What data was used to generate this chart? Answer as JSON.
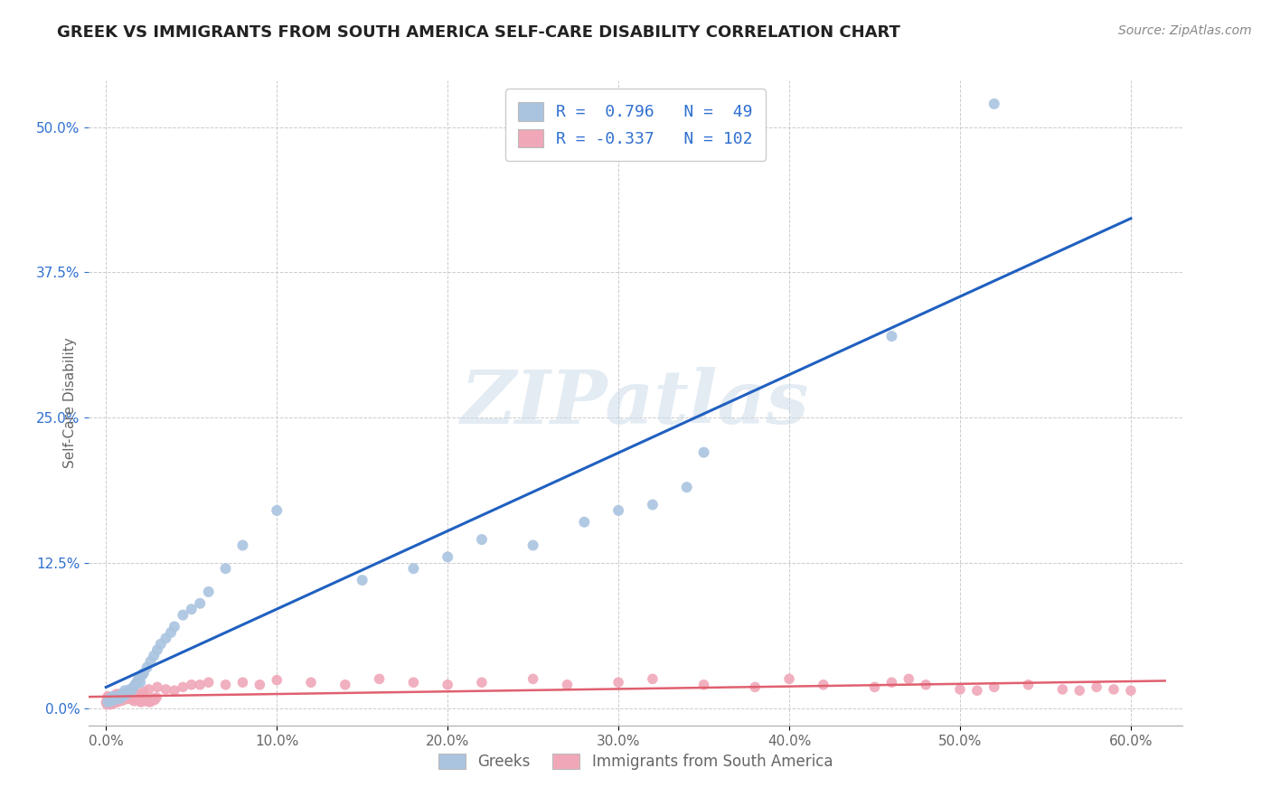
{
  "title": "GREEK VS IMMIGRANTS FROM SOUTH AMERICA SELF-CARE DISABILITY CORRELATION CHART",
  "source": "Source: ZipAtlas.com",
  "watermark": "ZIPatlas",
  "color_greek": "#aac4e0",
  "color_pink": "#f0a8b8",
  "color_trend_blue": "#2060c0",
  "color_trend_pink": "#e06070",
  "color_title": "#222222",
  "color_legend_blue_text": "#3070d0",
  "color_yaxis": "#3070d0",
  "greek_x": [
    0.1,
    0.2,
    0.3,
    0.4,
    0.5,
    0.6,
    0.7,
    0.8,
    0.9,
    1.0,
    1.1,
    1.2,
    1.3,
    1.4,
    1.5,
    1.6,
    1.7,
    1.8,
    1.9,
    2.0,
    2.1,
    2.2,
    2.4,
    2.6,
    2.8,
    3.0,
    3.2,
    3.5,
    3.8,
    4.0,
    4.5,
    5.0,
    5.5,
    6.0,
    7.0,
    8.0,
    10.0,
    25.0,
    28.0,
    30.0,
    32.0,
    34.0,
    35.0,
    46.0,
    52.0,
    15.0,
    18.0,
    20.0,
    22.0
  ],
  "greek_y": [
    0.5,
    0.8,
    0.6,
    1.0,
    0.7,
    0.9,
    1.0,
    0.8,
    1.2,
    1.0,
    1.5,
    1.2,
    1.4,
    1.6,
    1.5,
    1.8,
    2.0,
    2.2,
    2.5,
    2.2,
    2.8,
    3.0,
    3.5,
    4.0,
    4.5,
    5.0,
    5.5,
    6.0,
    6.5,
    7.0,
    8.0,
    8.5,
    9.0,
    10.0,
    12.0,
    14.0,
    17.0,
    14.0,
    16.0,
    17.0,
    17.5,
    19.0,
    22.0,
    32.0,
    52.0,
    11.0,
    12.0,
    13.0,
    14.5
  ],
  "pink_x": [
    0.0,
    0.1,
    0.1,
    0.2,
    0.2,
    0.3,
    0.3,
    0.3,
    0.4,
    0.4,
    0.5,
    0.5,
    0.5,
    0.6,
    0.6,
    0.7,
    0.7,
    0.8,
    0.8,
    0.9,
    1.0,
    1.0,
    1.1,
    1.2,
    1.3,
    1.4,
    1.5,
    1.5,
    1.6,
    1.7,
    1.8,
    2.0,
    2.2,
    2.5,
    3.0,
    3.5,
    4.0,
    4.5,
    5.0,
    5.5,
    6.0,
    7.0,
    8.0,
    9.0,
    10.0,
    12.0,
    14.0,
    16.0,
    18.0,
    20.0,
    22.0,
    25.0,
    27.0,
    30.0,
    32.0,
    35.0,
    38.0,
    40.0,
    42.0,
    45.0,
    46.0,
    47.0,
    48.0,
    50.0,
    51.0,
    52.0,
    54.0,
    56.0,
    57.0,
    58.0,
    59.0,
    60.0,
    0.05,
    0.15,
    0.25,
    0.35,
    0.45,
    0.55,
    0.65,
    0.75,
    0.85,
    0.95,
    1.05,
    1.15,
    1.25,
    1.35,
    1.45,
    1.55,
    1.65,
    1.75,
    1.85,
    1.95,
    2.05,
    2.15,
    2.25,
    2.35,
    2.45,
    2.55,
    2.65,
    2.75,
    2.85,
    2.95
  ],
  "pink_y": [
    0.5,
    0.8,
    1.0,
    0.5,
    0.9,
    0.5,
    0.7,
    0.8,
    0.6,
    0.9,
    0.5,
    0.7,
    1.0,
    0.8,
    1.2,
    0.7,
    1.0,
    0.8,
    1.2,
    1.0,
    0.7,
    1.0,
    0.9,
    0.8,
    1.0,
    0.9,
    1.0,
    1.5,
    1.2,
    1.0,
    1.2,
    1.2,
    1.4,
    1.6,
    1.8,
    1.6,
    1.5,
    1.8,
    2.0,
    2.0,
    2.2,
    2.0,
    2.2,
    2.0,
    2.4,
    2.2,
    2.0,
    2.5,
    2.2,
    2.0,
    2.2,
    2.5,
    2.0,
    2.2,
    2.5,
    2.0,
    1.8,
    2.5,
    2.0,
    1.8,
    2.2,
    2.5,
    2.0,
    1.6,
    1.5,
    1.8,
    2.0,
    1.6,
    1.5,
    1.8,
    1.6,
    1.5,
    0.3,
    0.4,
    0.3,
    0.5,
    0.4,
    0.6,
    0.5,
    0.7,
    0.6,
    0.8,
    0.7,
    0.9,
    0.8,
    1.0,
    0.8,
    0.7,
    0.6,
    0.7,
    0.8,
    0.6,
    0.5,
    0.7,
    0.8,
    0.6,
    0.7,
    0.5,
    0.6,
    0.8,
    0.7,
    0.9
  ]
}
